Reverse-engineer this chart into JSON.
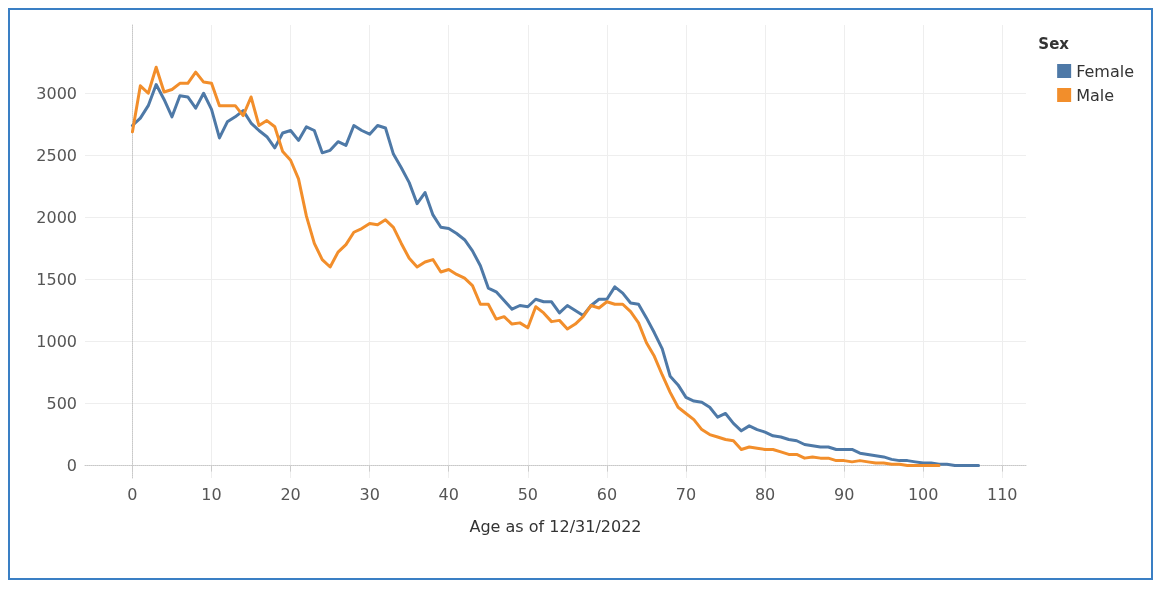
{
  "chart_data": {
    "type": "line",
    "xlabel": "Age as of 12/31/2022",
    "legend_title": "Sex",
    "legend": "top right",
    "grid": true,
    "marker": "none",
    "line_style": "solid",
    "xlim": [
      -6,
      113
    ],
    "xticks": [
      0,
      10,
      20,
      30,
      40,
      50,
      60,
      70,
      80,
      90,
      100,
      110
    ],
    "ylim": [
      -100,
      3550
    ],
    "yticks": [
      0,
      500,
      1000,
      1500,
      2000,
      2500,
      3000
    ],
    "series": [
      {
        "name": "Female",
        "color": "#4e79a7",
        "x": [
          0,
          1,
          2,
          3,
          4,
          5,
          6,
          7,
          8,
          9,
          10,
          11,
          12,
          13,
          14,
          15,
          16,
          17,
          18,
          19,
          20,
          21,
          22,
          23,
          24,
          25,
          26,
          27,
          28,
          29,
          30,
          31,
          32,
          33,
          34,
          35,
          36,
          37,
          38,
          39,
          40,
          41,
          42,
          43,
          44,
          45,
          46,
          47,
          48,
          49,
          50,
          51,
          52,
          53,
          54,
          55,
          56,
          57,
          58,
          59,
          60,
          61,
          62,
          63,
          64,
          65,
          66,
          67,
          68,
          69,
          70,
          71,
          72,
          73,
          74,
          75,
          76,
          77,
          78,
          79,
          80,
          81,
          82,
          83,
          84,
          85,
          86,
          87,
          88,
          89,
          90,
          91,
          92,
          93,
          94,
          95,
          96,
          97,
          98,
          99,
          100,
          101,
          102,
          103,
          104,
          105,
          106,
          107
        ],
        "values": [
          2740,
          2800,
          2900,
          3070,
          2950,
          2810,
          2980,
          2970,
          2880,
          3000,
          2870,
          2640,
          2770,
          2810,
          2860,
          2760,
          2700,
          2650,
          2560,
          2680,
          2700,
          2620,
          2730,
          2700,
          2520,
          2540,
          2610,
          2580,
          2740,
          2700,
          2670,
          2740,
          2720,
          2510,
          2400,
          2280,
          2110,
          2200,
          2020,
          1920,
          1910,
          1870,
          1820,
          1730,
          1610,
          1430,
          1400,
          1330,
          1260,
          1290,
          1280,
          1340,
          1320,
          1320,
          1230,
          1290,
          1250,
          1210,
          1290,
          1340,
          1340,
          1440,
          1390,
          1310,
          1300,
          1190,
          1070,
          940,
          720,
          650,
          550,
          520,
          510,
          470,
          390,
          420,
          340,
          280,
          320,
          290,
          270,
          240,
          230,
          210,
          200,
          170,
          160,
          150,
          150,
          130,
          130,
          130,
          100,
          90,
          80,
          70,
          50,
          40,
          40,
          30,
          20,
          20,
          10,
          10,
          0,
          0,
          0,
          0
        ]
      },
      {
        "name": "Male",
        "color": "#f28e2b",
        "x": [
          0,
          1,
          2,
          3,
          4,
          5,
          6,
          7,
          8,
          9,
          10,
          11,
          12,
          13,
          14,
          15,
          16,
          17,
          18,
          19,
          20,
          21,
          22,
          23,
          24,
          25,
          26,
          27,
          28,
          29,
          30,
          31,
          32,
          33,
          34,
          35,
          36,
          37,
          38,
          39,
          40,
          41,
          42,
          43,
          44,
          45,
          46,
          47,
          48,
          49,
          50,
          51,
          52,
          53,
          54,
          55,
          56,
          57,
          58,
          59,
          60,
          61,
          62,
          63,
          64,
          65,
          66,
          67,
          68,
          69,
          70,
          71,
          72,
          73,
          74,
          75,
          76,
          77,
          78,
          79,
          80,
          81,
          82,
          83,
          84,
          85,
          86,
          87,
          88,
          89,
          90,
          91,
          92,
          93,
          94,
          95,
          96,
          97,
          98,
          99,
          100,
          101,
          102
        ],
        "values": [
          2690,
          3060,
          3000,
          3210,
          3010,
          3030,
          3080,
          3080,
          3170,
          3090,
          3080,
          2900,
          2900,
          2900,
          2820,
          2970,
          2740,
          2780,
          2730,
          2530,
          2460,
          2310,
          2010,
          1790,
          1660,
          1600,
          1720,
          1780,
          1880,
          1910,
          1950,
          1940,
          1980,
          1920,
          1790,
          1670,
          1600,
          1640,
          1660,
          1560,
          1580,
          1540,
          1510,
          1450,
          1300,
          1300,
          1180,
          1200,
          1140,
          1150,
          1110,
          1280,
          1230,
          1160,
          1170,
          1100,
          1140,
          1200,
          1290,
          1270,
          1320,
          1300,
          1300,
          1240,
          1150,
          990,
          880,
          730,
          590,
          470,
          420,
          370,
          290,
          250,
          230,
          210,
          200,
          130,
          150,
          140,
          130,
          130,
          110,
          90,
          90,
          60,
          70,
          60,
          60,
          40,
          40,
          30,
          40,
          30,
          20,
          20,
          10,
          10,
          0,
          0,
          0,
          0,
          0
        ]
      }
    ]
  }
}
